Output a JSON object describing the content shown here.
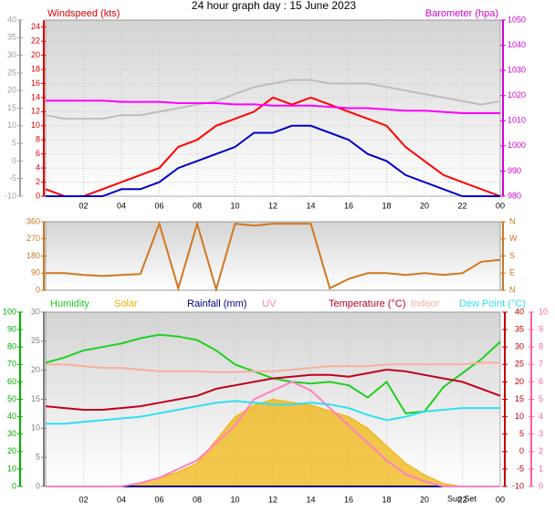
{
  "chart_data": [
    {
      "type": "line",
      "title": "24 hour graph day : 15 June 2023",
      "ylabel": "Windspeed (kts)",
      "y2label": "Barometer (hpa)",
      "x": [
        0,
        1,
        2,
        3,
        4,
        5,
        6,
        7,
        8,
        9,
        10,
        11,
        12,
        13,
        14,
        15,
        16,
        17,
        18,
        19,
        20,
        21,
        22,
        23,
        24
      ],
      "xlim": [
        0,
        24
      ],
      "xticks": [
        {
          "value": 2,
          "label": "02"
        },
        {
          "value": 4,
          "label": "04"
        },
        {
          "value": 6,
          "label": "06"
        },
        {
          "value": 8,
          "label": "08"
        },
        10,
        12,
        14,
        16,
        18,
        20,
        22,
        {
          "value": 24,
          "label": "00"
        }
      ],
      "grid": true,
      "axes": {
        "y3": {
          "lim": [
            -10,
            40
          ],
          "ticks": [
            -10,
            -5,
            0,
            5,
            10,
            15,
            20,
            25,
            30,
            35,
            40
          ],
          "color": "#a0a0a0"
        },
        "y": {
          "lim": [
            0,
            25
          ],
          "ticks": [
            0,
            2,
            4,
            6,
            8,
            10,
            12,
            14,
            16,
            18,
            20,
            22,
            24
          ],
          "color": "#e00000"
        },
        "y2": {
          "lim": [
            980,
            1050
          ],
          "ticks": [
            980,
            990,
            1000,
            1010,
            1020,
            1030,
            1040,
            1050
          ],
          "color": "#d000d0"
        }
      },
      "series": [
        {
          "color": "#bdbdbd",
          "axis": "y3",
          "values": [
            13,
            12,
            12,
            12,
            13,
            13,
            14,
            15,
            16,
            17,
            19,
            21,
            22,
            23,
            23,
            22,
            22,
            22,
            21,
            20,
            19,
            18,
            17,
            16,
            17
          ]
        },
        {
          "color": "#ff0000",
          "axis": "y",
          "values": [
            1,
            0,
            0,
            1,
            2,
            3,
            4,
            7,
            8,
            10,
            11,
            12,
            14,
            13,
            14,
            13,
            12,
            11,
            10,
            7,
            5,
            3,
            2,
            1,
            0
          ]
        },
        {
          "color": "#0000c8",
          "axis": "y",
          "values": [
            0,
            0,
            0,
            0,
            1,
            1,
            2,
            4,
            5,
            6,
            7,
            9,
            9,
            10,
            10,
            9,
            8,
            6,
            5,
            3,
            2,
            1,
            0,
            0,
            0
          ]
        },
        {
          "color": "#ff00ff",
          "axis": "y2",
          "values": [
            1018,
            1018,
            1018,
            1018,
            1017.5,
            1017.5,
            1017.5,
            1017,
            1017,
            1017,
            1016.5,
            1016.5,
            1016,
            1016,
            1016,
            1015.5,
            1015,
            1015,
            1014.5,
            1014,
            1014,
            1013.5,
            1013,
            1013,
            1013
          ]
        }
      ]
    },
    {
      "type": "line",
      "x": [
        0,
        1,
        2,
        3,
        4,
        5,
        6,
        7,
        8,
        9,
        10,
        11,
        12,
        13,
        14,
        15,
        16,
        17,
        18,
        19,
        20,
        21,
        22,
        23,
        24
      ],
      "xlim": [
        0,
        24
      ],
      "axes": {
        "y": {
          "lim": [
            0,
            360
          ],
          "ticks": [
            0,
            90,
            180,
            270,
            360
          ],
          "color": "#c87820"
        },
        "y2": {
          "lim": [
            0,
            360
          ],
          "ticks": [
            {
              "value": 0,
              "label": "N"
            },
            {
              "value": 90,
              "label": "E"
            },
            {
              "value": 180,
              "label": "S"
            },
            {
              "value": 270,
              "label": "W"
            },
            {
              "value": 360,
              "label": "N"
            }
          ],
          "color": "#c87820"
        }
      },
      "series": [
        {
          "color": "#d07820",
          "axis": "y",
          "values": [
            90,
            90,
            80,
            75,
            80,
            85,
            350,
            10,
            350,
            5,
            350,
            340,
            350,
            350,
            350,
            10,
            60,
            90,
            90,
            80,
            90,
            80,
            90,
            150,
            160
          ]
        }
      ]
    },
    {
      "type": "line",
      "x": [
        0,
        1,
        2,
        3,
        4,
        5,
        6,
        7,
        8,
        9,
        10,
        11,
        12,
        13,
        14,
        15,
        16,
        17,
        18,
        19,
        20,
        21,
        22,
        23,
        24
      ],
      "xlim": [
        0,
        24
      ],
      "xticks": [
        {
          "value": 2,
          "label": "02"
        },
        {
          "value": 4,
          "label": "04"
        },
        {
          "value": 6,
          "label": "06"
        },
        {
          "value": 8,
          "label": "08"
        },
        10,
        12,
        14,
        16,
        18,
        20,
        22,
        {
          "value": 24,
          "label": "00"
        }
      ],
      "annotations": [
        "Sun Set"
      ],
      "axes": {
        "y": {
          "lim": [
            0,
            100
          ],
          "ticks": [
            0,
            10,
            20,
            30,
            40,
            50,
            60,
            70,
            80,
            90,
            100
          ],
          "color": "#00b000"
        },
        "y_inner": {
          "lim": [
            0,
            30
          ],
          "ticks": [
            0,
            5,
            10,
            15,
            20,
            25,
            30
          ],
          "color": "#808080"
        },
        "y2": {
          "lim": [
            -10,
            40
          ],
          "ticks": [
            -10,
            -5,
            0,
            5,
            10,
            15,
            20,
            25,
            30,
            35,
            40
          ],
          "color": "#c00000"
        },
        "y3": {
          "lim": [
            0,
            10
          ],
          "ticks": [
            0,
            1,
            2,
            3,
            4,
            5,
            6,
            7,
            8,
            9,
            10
          ],
          "color": "#ff60a0"
        }
      },
      "series": [
        {
          "name": "Humidity",
          "color": "#20d020",
          "axis": "y",
          "values": [
            71,
            74,
            78,
            80,
            82,
            85,
            87,
            86,
            84,
            78,
            70,
            66,
            62,
            60,
            59,
            60,
            58,
            51,
            60,
            42,
            43,
            57,
            65,
            73,
            83
          ]
        },
        {
          "name": "Solar",
          "color": "#f0b000",
          "axis": "y_inner",
          "fill": true,
          "values": [
            0,
            0,
            0,
            0,
            0,
            0.5,
            1.5,
            2.5,
            4,
            8,
            12,
            14,
            15,
            14.5,
            14,
            13,
            12,
            10,
            7,
            4,
            2,
            0.5,
            0,
            0,
            0
          ]
        },
        {
          "name": "Rainfall (mm)",
          "color": "#000080",
          "axis": "y_inner",
          "values": [
            0,
            0,
            0,
            0,
            0,
            0,
            0,
            0,
            0,
            0,
            0,
            0,
            0,
            0,
            0,
            0,
            0,
            0,
            0,
            0,
            0,
            0,
            0,
            0,
            0
          ]
        },
        {
          "name": "UV",
          "color": "#ff80c0",
          "axis": "y3",
          "values": [
            0,
            0,
            0,
            0,
            0,
            0.2,
            0.5,
            1,
            1.5,
            2.5,
            3.5,
            5,
            5.5,
            6,
            5.5,
            4.5,
            3.5,
            2.5,
            1.5,
            0.7,
            0.3,
            0,
            0,
            0,
            0
          ]
        },
        {
          "name": "Temperature (°C)",
          "color": "#c00020",
          "axis": "y2",
          "values": [
            13,
            12.5,
            12,
            12,
            12.5,
            13,
            14,
            15,
            16,
            18,
            19,
            20,
            21,
            21.5,
            22,
            22,
            21.5,
            22.5,
            23.5,
            23,
            22,
            21,
            20,
            18,
            16
          ]
        },
        {
          "name": "Indoor",
          "color": "#f8b0a0",
          "axis": "y2",
          "values": [
            25,
            25,
            24.5,
            24,
            24,
            23.5,
            23,
            23,
            23,
            22.8,
            22.8,
            23,
            23,
            23.5,
            24,
            24.5,
            24.5,
            24.5,
            25,
            25,
            25,
            25,
            25,
            25.5,
            25.5
          ]
        },
        {
          "name": "Dew Point (°C)",
          "color": "#30e0f0",
          "axis": "y2",
          "values": [
            8,
            8,
            8.5,
            9,
            9.5,
            10,
            11,
            12,
            13,
            14,
            14.5,
            14,
            13.5,
            13.5,
            14,
            13.5,
            12.5,
            10.5,
            9,
            10,
            11.5,
            12,
            12.5,
            12.5,
            12.5
          ]
        }
      ]
    }
  ]
}
